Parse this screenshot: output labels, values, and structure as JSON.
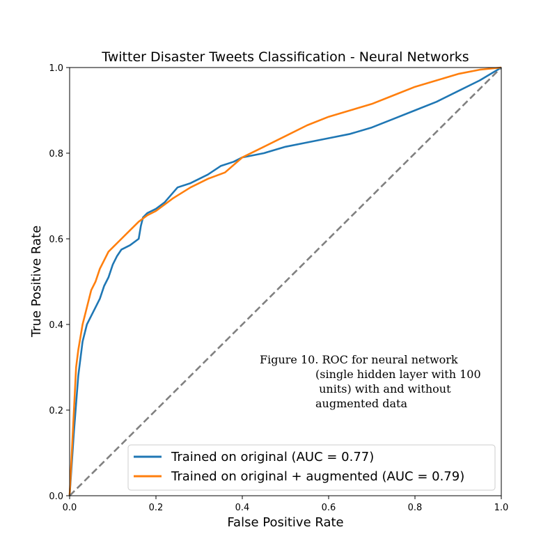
{
  "chart_data": {
    "type": "line",
    "title": "Twitter Disaster Tweets Classification - Neural Networks",
    "xlabel": "False Positive Rate",
    "ylabel": "True Positive Rate",
    "xlim": [
      0,
      1
    ],
    "ylim": [
      0,
      1
    ],
    "x_ticks": [
      "0.0",
      "0.2",
      "0.4",
      "0.6",
      "0.8",
      "1.0"
    ],
    "y_ticks": [
      "0.0",
      "0.2",
      "0.4",
      "0.6",
      "0.8",
      "1.0"
    ],
    "legend_position": "lower-right",
    "annotation": {
      "lines": [
        "Figure 10.  ROC for neural network",
        "(single hidden layer with 100",
        " units) with and without",
        "augmented data"
      ]
    },
    "colors": {
      "original": "#1f77b4",
      "augmented": "#ff7f0e",
      "chance": "#808080"
    },
    "series": [
      {
        "name": "Trained on original (AUC = 0.77)",
        "color": "#1f77b4",
        "x": [
          0,
          0.01,
          0.02,
          0.03,
          0.04,
          0.05,
          0.06,
          0.07,
          0.08,
          0.09,
          0.1,
          0.11,
          0.12,
          0.14,
          0.16,
          0.165,
          0.17,
          0.18,
          0.2,
          0.22,
          0.25,
          0.28,
          0.3,
          0.32,
          0.35,
          0.38,
          0.4,
          0.45,
          0.5,
          0.55,
          0.6,
          0.65,
          0.7,
          0.75,
          0.8,
          0.85,
          0.9,
          0.95,
          1.0
        ],
        "y": [
          0,
          0.15,
          0.28,
          0.36,
          0.4,
          0.42,
          0.44,
          0.46,
          0.49,
          0.51,
          0.54,
          0.56,
          0.575,
          0.585,
          0.6,
          0.63,
          0.65,
          0.66,
          0.67,
          0.685,
          0.72,
          0.73,
          0.74,
          0.75,
          0.77,
          0.78,
          0.79,
          0.8,
          0.815,
          0.825,
          0.835,
          0.845,
          0.86,
          0.88,
          0.9,
          0.92,
          0.945,
          0.97,
          1.0
        ]
      },
      {
        "name": "Trained on original + augmented (AUC = 0.79)",
        "color": "#ff7f0e",
        "x": [
          0,
          0.01,
          0.015,
          0.02,
          0.03,
          0.04,
          0.05,
          0.06,
          0.07,
          0.08,
          0.09,
          0.1,
          0.12,
          0.14,
          0.16,
          0.18,
          0.2,
          0.24,
          0.28,
          0.32,
          0.36,
          0.4,
          0.45,
          0.5,
          0.55,
          0.6,
          0.65,
          0.7,
          0.75,
          0.8,
          0.85,
          0.9,
          0.95,
          1.0
        ],
        "y": [
          0,
          0.2,
          0.3,
          0.34,
          0.4,
          0.44,
          0.48,
          0.5,
          0.53,
          0.55,
          0.57,
          0.58,
          0.6,
          0.62,
          0.64,
          0.655,
          0.665,
          0.695,
          0.72,
          0.74,
          0.755,
          0.79,
          0.815,
          0.84,
          0.865,
          0.885,
          0.9,
          0.915,
          0.935,
          0.955,
          0.97,
          0.985,
          0.995,
          1.0
        ]
      }
    ]
  }
}
